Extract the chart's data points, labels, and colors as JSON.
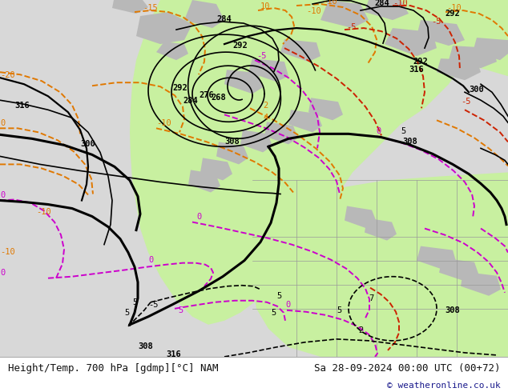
{
  "title_left": "Height/Temp. 700 hPa [gdmp][°C] NAM",
  "title_right": "Sa 28-09-2024 00:00 UTC (00+72)",
  "copyright": "© weatheronline.co.uk",
  "background_color": "#ffffff",
  "ocean_color": "#d8d8d8",
  "land_green_color": "#c8f0a0",
  "land_gray_color": "#b8b8b8",
  "fig_width": 6.34,
  "fig_height": 4.9,
  "dpi": 100,
  "bottom_text_color": "#111111",
  "copyright_color": "#1a1a8c",
  "font_family": "monospace",
  "label_fontsize": 9,
  "copyright_fontsize": 8,
  "black": "#000000",
  "orange": "#e07800",
  "red": "#cc2200",
  "pink": "#cc00cc"
}
